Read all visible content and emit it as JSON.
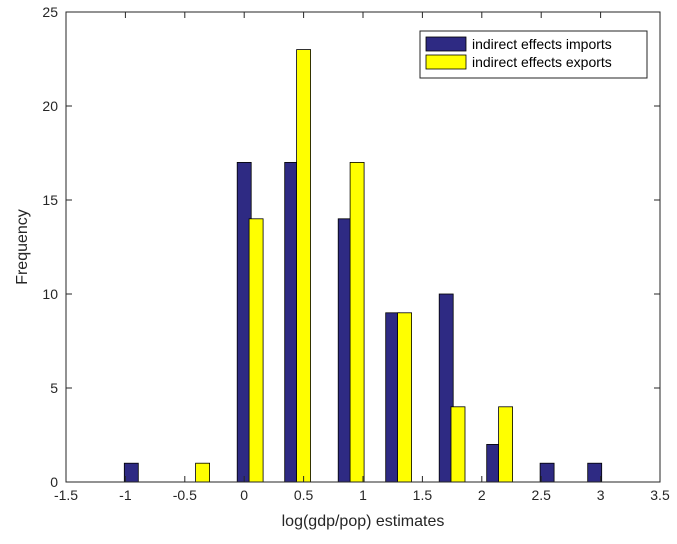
{
  "chart_data": {
    "type": "bar",
    "xlabel": "log(gdp/pop) estimates",
    "ylabel": "Frequency",
    "xlim": [
      -1.5,
      3.5
    ],
    "ylim": [
      0,
      25
    ],
    "xticks": [
      "-1.5",
      "-1",
      "-0.5",
      "0",
      "0.5",
      "1",
      "1.5",
      "2",
      "2.5",
      "3",
      "3.5"
    ],
    "yticks": [
      "0",
      "5",
      "10",
      "15",
      "20",
      "25"
    ],
    "grid": false,
    "legend_position": "top-right",
    "series": [
      {
        "name": "indirect effects imports",
        "color": "#2E2A83",
        "x": [
          -0.95,
          -0.5,
          0.0,
          0.4,
          0.85,
          1.25,
          1.7,
          2.1,
          2.55,
          2.95
        ],
        "values": [
          1,
          0,
          17,
          17,
          14,
          9,
          10,
          2,
          1,
          1
        ]
      },
      {
        "name": "indirect effects exports",
        "color": "#FFFF00",
        "x": [
          -0.85,
          -0.35,
          0.1,
          0.5,
          0.95,
          1.35,
          1.8,
          2.2,
          2.65,
          3.05
        ],
        "values": [
          0,
          1,
          14,
          23,
          17,
          9,
          4,
          4,
          0,
          0
        ]
      }
    ]
  }
}
